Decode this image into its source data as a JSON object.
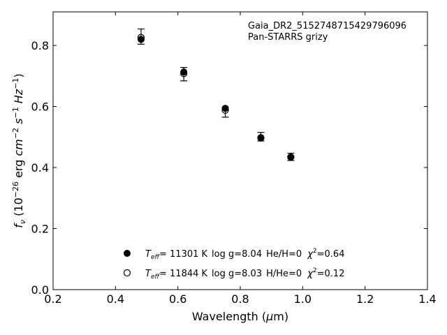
{
  "chart_data": {
    "type": "scatter",
    "annotation": [
      "Gaia_DR2_5152748715429796096",
      "Pan-STARRS grizy"
    ],
    "xlabel": "Wavelength (μm)",
    "ylabel": "f_ν (10^−26 erg cm^−2 s^−1 Hz^−1)",
    "xlim": [
      0.2,
      1.4
    ],
    "ylim": [
      0.0,
      0.91
    ],
    "xticks": [
      "0.2",
      "0.4",
      "0.6",
      "0.8",
      "1.0",
      "1.2",
      "1.4"
    ],
    "yticks": [
      "0.0",
      "0.2",
      "0.4",
      "0.6",
      "0.8"
    ],
    "grid": false,
    "legend_position": "bottom-center",
    "observed": {
      "x": [
        0.482,
        0.619,
        0.752,
        0.866,
        0.962
      ],
      "y": [
        0.829,
        0.706,
        0.581,
        0.501,
        0.435
      ],
      "yerr": [
        0.025,
        0.022,
        0.016,
        0.014,
        0.012
      ]
    },
    "series": [
      {
        "marker": "filled",
        "label": {
          "teff_sym": "T",
          "teff_sub": "eff",
          "teff_val": "= 11301 K",
          "logg": "log g=8.04",
          "comp": "He/H=0",
          "chi_sym": "χ",
          "chi_sup": "2",
          "chi_val": "=0.64"
        },
        "x": [
          0.482,
          0.619,
          0.752,
          0.866,
          0.962
        ],
        "y": [
          0.82,
          0.713,
          0.594,
          0.498,
          0.435
        ]
      },
      {
        "marker": "open",
        "label": {
          "teff_sym": "T",
          "teff_sub": "eff",
          "teff_val": "= 11844 K",
          "logg": "log g=8.03",
          "comp": "H/He=0",
          "chi_sym": "χ",
          "chi_sup": "2",
          "chi_val": "=0.12"
        },
        "x": [
          0.482,
          0.619,
          0.752,
          0.866,
          0.962
        ],
        "y": [
          0.826,
          0.708,
          0.588,
          0.497,
          0.434
        ]
      }
    ]
  }
}
